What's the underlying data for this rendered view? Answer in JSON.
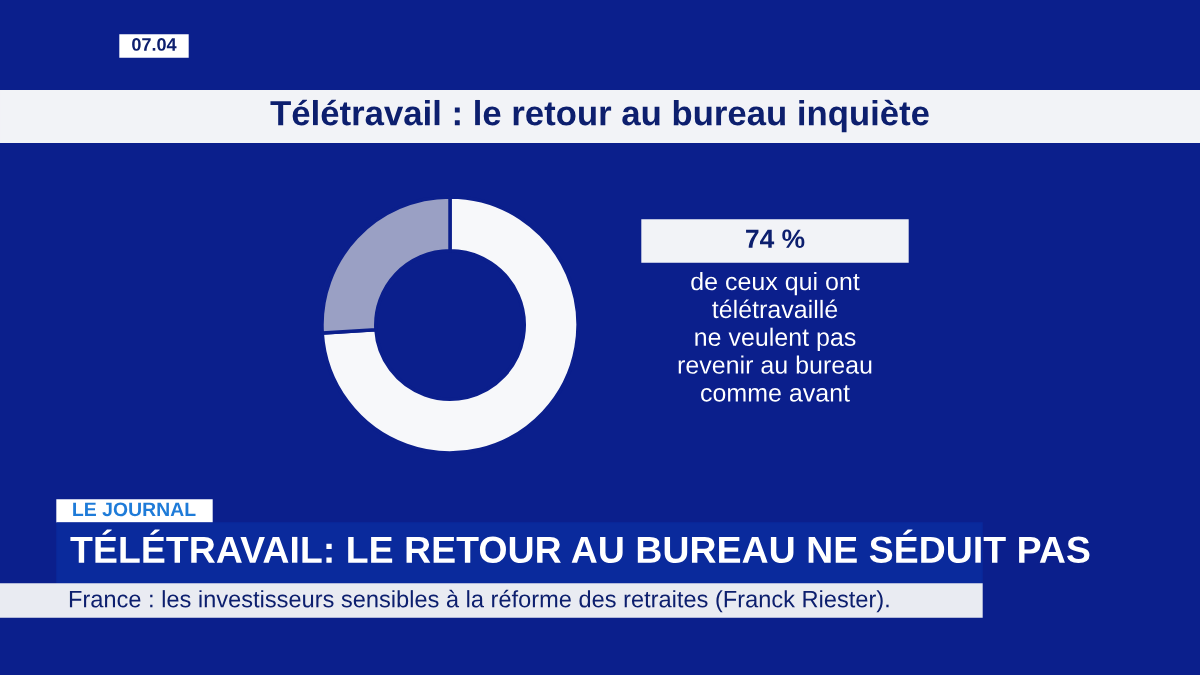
{
  "chart_data": {
    "type": "donut",
    "title": "Télétravail : le retour au bureau inquiète",
    "categories": [
      null,
      null
    ],
    "values": [
      74,
      26
    ],
    "colors": [
      "#f7f8fa",
      "#9aa0c4"
    ],
    "annotations": [
      "74 %",
      "de ceux qui ont\ntélétravaillé\nne veulent pas\nrevenir au bureau\ncomme avant",
      "07.04",
      "LE JOURNAL",
      "TÉLÉTRAVAIL: LE RETOUR AU BUREAU NE SÉDUIT PAS",
      "France : les investisseurs sensibles à la réforme des retraites (Franck Riester)."
    ]
  }
}
